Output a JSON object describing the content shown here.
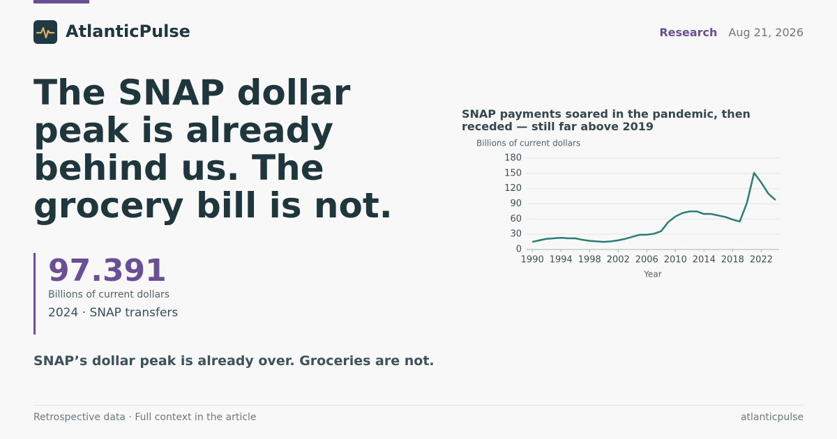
{
  "header": {
    "brand": "AtlanticPulse",
    "nav": "Research",
    "date": "Aug 21, 2026"
  },
  "headline": "The SNAP dollar peak is already behind us. The grocery bill is not.",
  "stat": {
    "value": "97.391",
    "unit": "Billions of current dollars",
    "caption": "2024 · SNAP transfers"
  },
  "dek": "SNAP’s dollar peak is already over. Groceries are not.",
  "chart_data": {
    "type": "line",
    "title": "SNAP payments soared in the pandemic, then receded — still far above 2019",
    "y_label": "Billions of current dollars",
    "x_label": "Year",
    "x": [
      1990,
      1991,
      1992,
      1993,
      1994,
      1995,
      1996,
      1997,
      1998,
      1999,
      2000,
      2001,
      2002,
      2003,
      2004,
      2005,
      2006,
      2007,
      2008,
      2009,
      2010,
      2011,
      2012,
      2013,
      2014,
      2015,
      2016,
      2017,
      2018,
      2019,
      2020,
      2021,
      2022,
      2023,
      2024
    ],
    "series": [
      {
        "name": "SNAP transfers",
        "color": "#2a7d74",
        "values": [
          15,
          18,
          21,
          22,
          23,
          22,
          22,
          19,
          17,
          16,
          15,
          16,
          18,
          21,
          25,
          29,
          29,
          31,
          36,
          54,
          65,
          72,
          75,
          75,
          70,
          70,
          67,
          64,
          59,
          55,
          92,
          151,
          132,
          110,
          97.391
        ]
      }
    ],
    "xlim": [
      1989.2,
      2024.5
    ],
    "ylim": [
      0,
      180
    ],
    "xticks": [
      1990,
      1994,
      1998,
      2002,
      2006,
      2010,
      2014,
      2018,
      2022
    ],
    "yticks": [
      0,
      30,
      60,
      90,
      120,
      150,
      180
    ],
    "grid": true
  },
  "footer": {
    "left": "Retrospective data · Full context in the article",
    "right": "atlanticpulse"
  }
}
